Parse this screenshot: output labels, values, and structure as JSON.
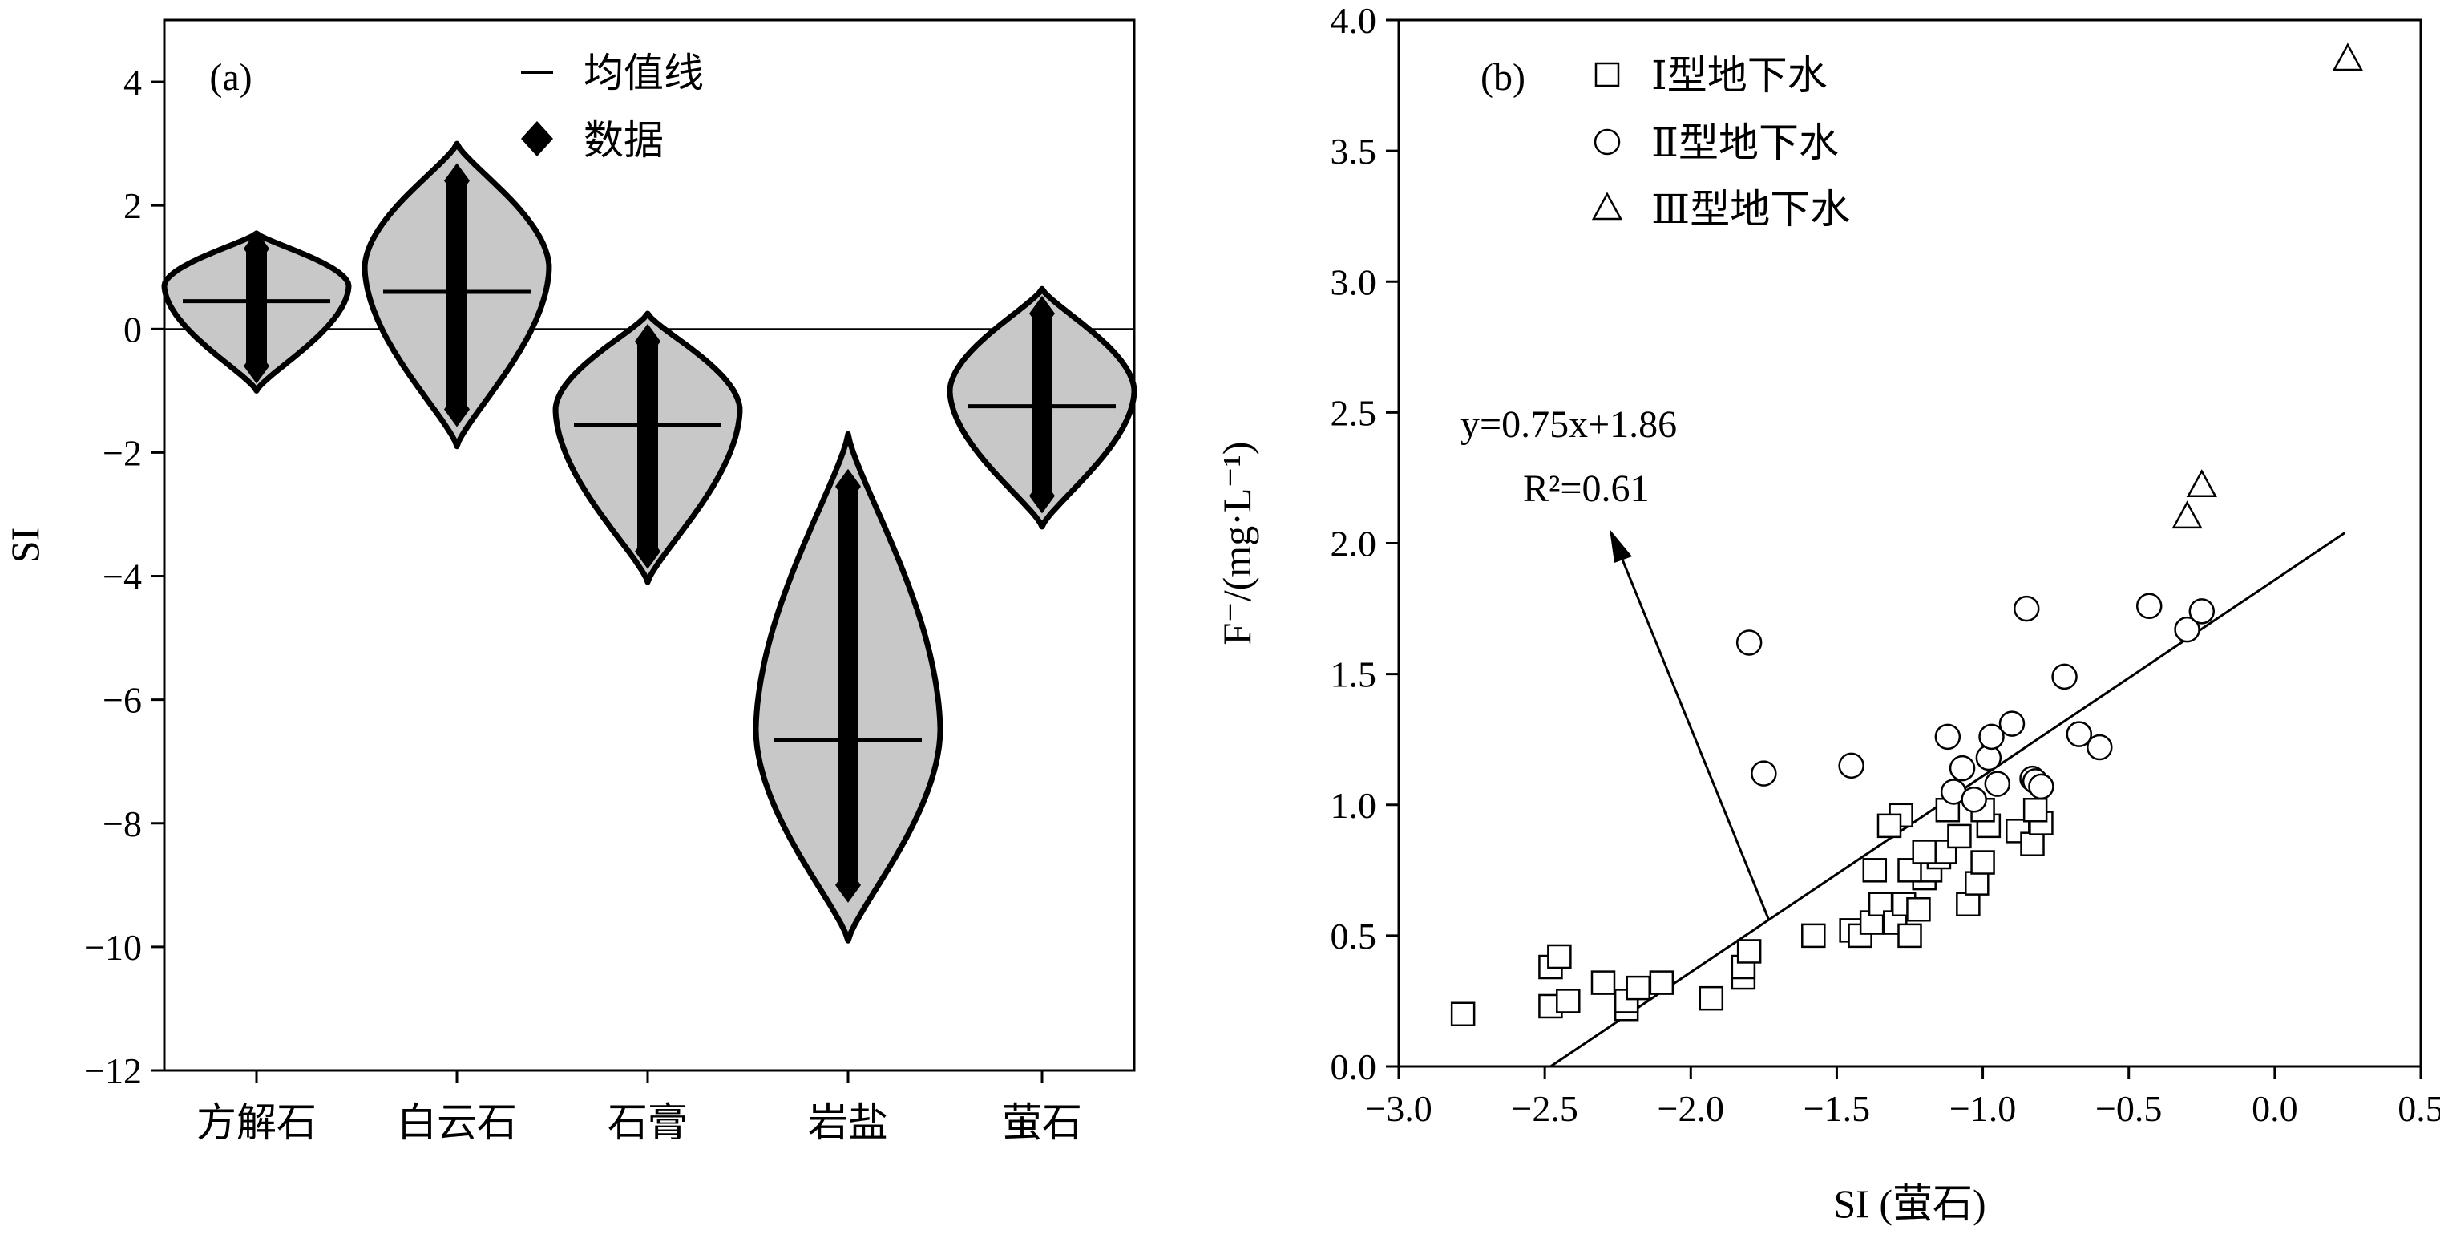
{
  "chart_data": [
    {
      "panel_label": "(a)",
      "type": "violin",
      "ylabel": "SI",
      "ylim": [
        -12,
        5
      ],
      "yticks": [
        -12,
        -10,
        -8,
        -6,
        -4,
        -2,
        0,
        2,
        4
      ],
      "categories": [
        "方解石",
        "白云石",
        "石膏",
        "岩盐",
        "萤石"
      ],
      "legend": {
        "mean_line": "均值线",
        "data": "数据",
        "position": "top"
      },
      "reference_line_y": 0,
      "violins": [
        {
          "category": "方解石",
          "mean": 0.45,
          "min": -0.6,
          "max": 1.3,
          "range": [
            -1.0,
            1.55
          ],
          "max_width_at": 0.7
        },
        {
          "category": "白云石",
          "mean": 0.6,
          "min": -1.3,
          "max": 2.4,
          "range": [
            -1.9,
            3.0
          ],
          "max_width_at": 1.0
        },
        {
          "category": "石膏",
          "mean": -1.55,
          "min": -3.6,
          "max": -0.2,
          "range": [
            -4.1,
            0.25
          ],
          "max_width_at": -1.3
        },
        {
          "category": "岩盐",
          "mean": -6.65,
          "min": -9.0,
          "max": -2.55,
          "range": [
            -9.9,
            -1.7
          ],
          "max_width_at": -6.5
        },
        {
          "category": "萤石",
          "mean": -1.25,
          "min": -2.7,
          "max": 0.25,
          "range": [
            -3.2,
            0.65
          ],
          "max_width_at": -1.0
        }
      ]
    },
    {
      "panel_label": "(b)",
      "type": "scatter",
      "xlabel": "SI (萤石)",
      "ylabel": "F⁻/(mg·L⁻¹)",
      "xlim": [
        -3.0,
        0.5
      ],
      "ylim": [
        0.0,
        4.0
      ],
      "xticks": [
        -3.0,
        -2.5,
        -2.0,
        -1.5,
        -1.0,
        -0.5,
        0.0,
        0.5
      ],
      "yticks": [
        0.0,
        0.5,
        1.0,
        1.5,
        2.0,
        2.5,
        3.0,
        3.5,
        4.0
      ],
      "tick_labels_x": [
        "−3.0",
        "−2.5",
        "−2.0",
        "−1.5",
        "−1.0",
        "−0.5",
        "0.0",
        "0.5"
      ],
      "tick_labels_y": [
        "0.0",
        "0.5",
        "1.0",
        "1.5",
        "2.0",
        "2.5",
        "3.0",
        "3.5",
        "4.0"
      ],
      "legend_position": "top-left",
      "series": [
        {
          "name": "Ⅰ型地下水",
          "marker": "square",
          "points": [
            [
              -2.78,
              0.2
            ],
            [
              -2.48,
              0.23
            ],
            [
              -2.42,
              0.25
            ],
            [
              -2.48,
              0.38
            ],
            [
              -2.45,
              0.42
            ],
            [
              -2.3,
              0.32
            ],
            [
              -2.22,
              0.22
            ],
            [
              -2.22,
              0.25
            ],
            [
              -2.18,
              0.3
            ],
            [
              -2.1,
              0.32
            ],
            [
              -1.93,
              0.26
            ],
            [
              -1.82,
              0.34
            ],
            [
              -1.82,
              0.38
            ],
            [
              -1.8,
              0.44
            ],
            [
              -1.58,
              0.5
            ],
            [
              -1.45,
              0.52
            ],
            [
              -1.42,
              0.5
            ],
            [
              -1.38,
              0.55
            ],
            [
              -1.35,
              0.62
            ],
            [
              -1.3,
              0.55
            ],
            [
              -1.27,
              0.62
            ],
            [
              -1.25,
              0.5
            ],
            [
              -1.22,
              0.6
            ],
            [
              -1.2,
              0.72
            ],
            [
              -1.18,
              0.75
            ],
            [
              -1.15,
              0.8
            ],
            [
              -1.13,
              0.82
            ],
            [
              -1.08,
              0.88
            ],
            [
              -1.05,
              0.62
            ],
            [
              -1.02,
              0.7
            ],
            [
              -1.0,
              0.78
            ],
            [
              -0.98,
              0.92
            ],
            [
              -1.0,
              0.98
            ],
            [
              -0.88,
              0.9
            ],
            [
              -0.83,
              0.85
            ],
            [
              -0.8,
              0.93
            ],
            [
              -0.82,
              0.98
            ],
            [
              -1.25,
              0.75
            ],
            [
              -1.28,
              0.96
            ],
            [
              -1.32,
              0.92
            ],
            [
              -1.37,
              0.75
            ],
            [
              -1.12,
              0.98
            ],
            [
              -1.2,
              0.82
            ]
          ]
        },
        {
          "name": "Ⅱ型地下水",
          "marker": "circle",
          "points": [
            [
              -1.8,
              1.62
            ],
            [
              -1.75,
              1.12
            ],
            [
              -1.45,
              1.15
            ],
            [
              -1.12,
              1.26
            ],
            [
              -1.1,
              1.05
            ],
            [
              -1.07,
              1.14
            ],
            [
              -1.03,
              1.02
            ],
            [
              -0.98,
              1.18
            ],
            [
              -0.97,
              1.26
            ],
            [
              -0.95,
              1.08
            ],
            [
              -0.9,
              1.31
            ],
            [
              -0.85,
              1.75
            ],
            [
              -0.83,
              1.1
            ],
            [
              -0.82,
              1.09
            ],
            [
              -0.8,
              1.07
            ],
            [
              -0.72,
              1.49
            ],
            [
              -0.67,
              1.27
            ],
            [
              -0.6,
              1.22
            ],
            [
              -0.43,
              1.76
            ],
            [
              -0.3,
              1.67
            ],
            [
              -0.25,
              1.74
            ]
          ]
        },
        {
          "name": "Ⅲ型地下水",
          "marker": "triangle",
          "points": [
            [
              -0.3,
              2.1
            ],
            [
              -0.25,
              2.22
            ],
            [
              0.25,
              3.85
            ]
          ]
        }
      ],
      "regression": {
        "equation": "y=0.75x+1.86",
        "r2": "R²=0.61",
        "slope": 0.75,
        "intercept": 1.86,
        "x_range": [
          -2.48,
          0.24
        ]
      }
    }
  ]
}
